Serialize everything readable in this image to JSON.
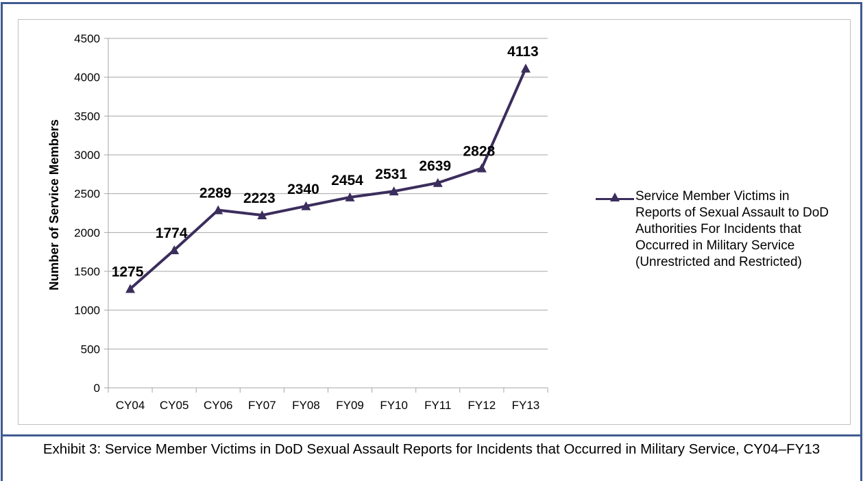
{
  "chart_data": {
    "type": "line",
    "categories": [
      "CY04",
      "CY05",
      "CY06",
      "FY07",
      "FY08",
      "FY09",
      "FY10",
      "FY11",
      "FY12",
      "FY13"
    ],
    "series": [
      {
        "name": "Service Member Victims in Reports of Sexual Assault to DoD Authorities For Incidents that Occurred in Military Service (Unrestricted and Restricted)",
        "values": [
          1275,
          1774,
          2289,
          2223,
          2340,
          2454,
          2531,
          2639,
          2828,
          4113
        ],
        "color": "#3b2d5c",
        "marker": "triangle"
      }
    ],
    "ylabel": "Number of Service Members",
    "xlabel": "",
    "ylim": [
      0,
      4500
    ],
    "yticks": [
      0,
      500,
      1000,
      1500,
      2000,
      2500,
      3000,
      3500,
      4000,
      4500
    ],
    "grid": "horizontal",
    "legend_position": "right",
    "data_labels": true
  },
  "caption": "Exhibit 3: Service Member Victims in DoD Sexual Assault Reports for Incidents that Occurred in Military Service, CY04–FY13",
  "colors": {
    "frame": "#3f5a8f",
    "grid": "#a6a6a6",
    "series": "#3b2d5c"
  }
}
